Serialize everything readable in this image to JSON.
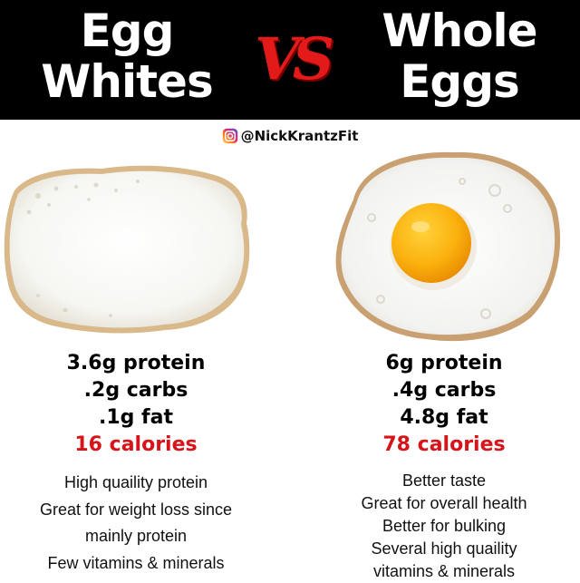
{
  "header": {
    "left_title": [
      "Egg",
      "Whites"
    ],
    "vs": "VS",
    "right_title": [
      "Whole",
      "Eggs"
    ],
    "background_color": "#000000",
    "vs_color": "#e21a1a"
  },
  "handle": {
    "icon": "instagram-icon",
    "text": "@NickKrantzFit"
  },
  "egg_whites": {
    "image": "egg-white-photo",
    "stats": [
      "3.6g protein",
      ".2g carbs",
      ".1g fat"
    ],
    "calories": "16 calories",
    "notes": [
      "High quaility protein",
      "Great for weight loss since",
      "mainly protein",
      "Few vitamins & minerals"
    ]
  },
  "whole_eggs": {
    "image": "fried-egg-photo",
    "stats": [
      "6g protein",
      ".4g carbs",
      "4.8g fat"
    ],
    "calories": "78 calories",
    "notes": [
      "Better taste",
      "Great for overall health",
      "Better for bulking",
      "Several high quaility",
      "vitamins & minerals"
    ]
  },
  "colors": {
    "calories": "#d7141a",
    "yolk": "#f7a400"
  }
}
